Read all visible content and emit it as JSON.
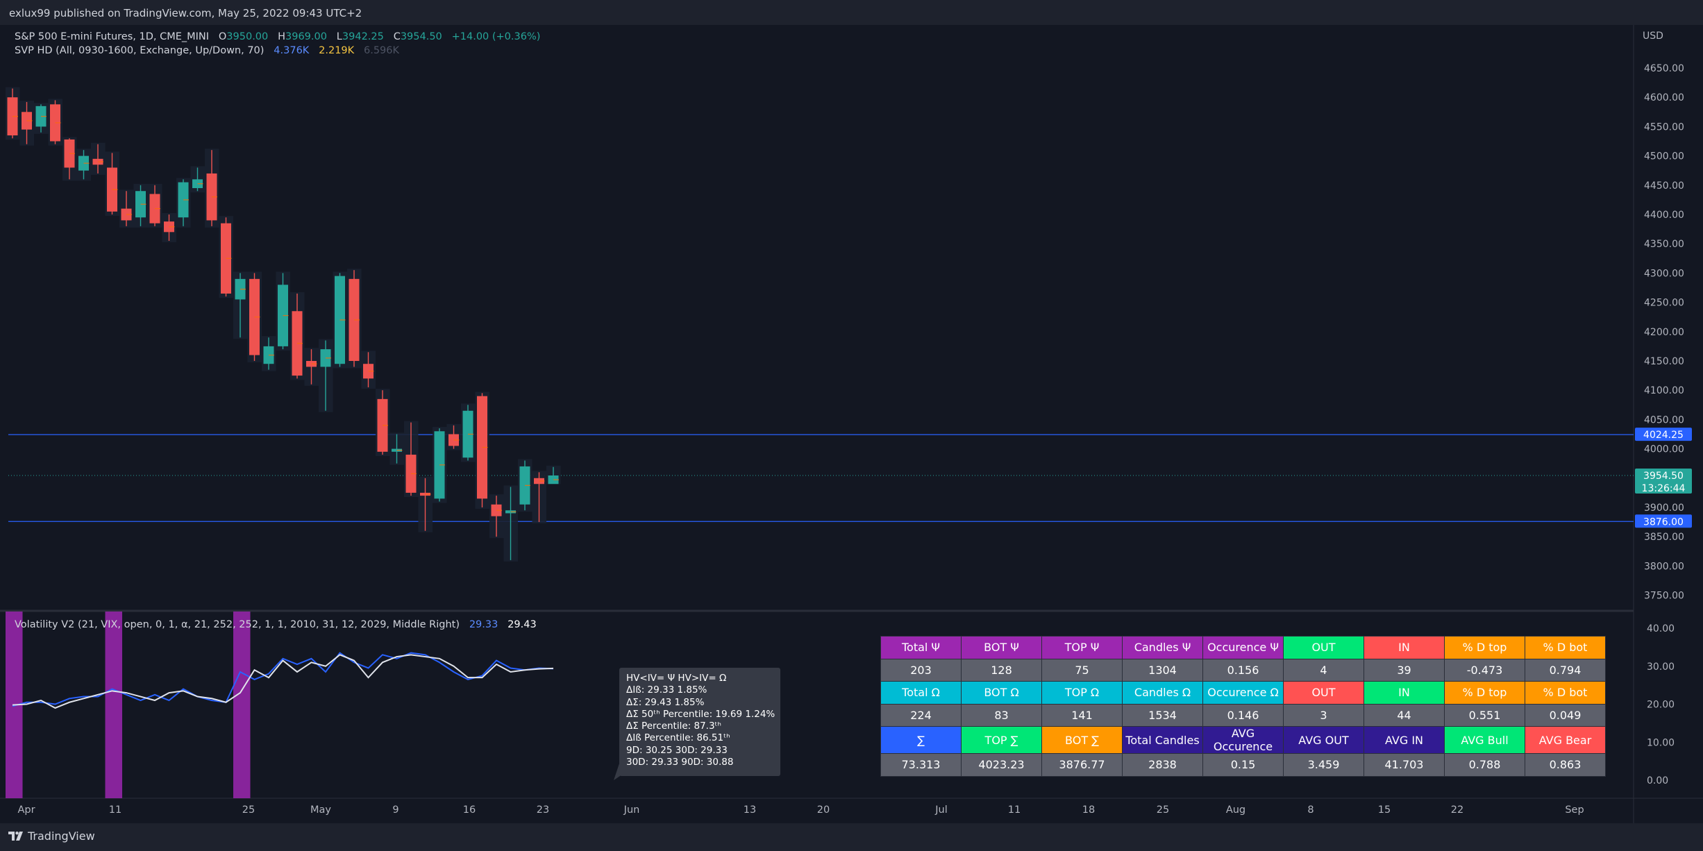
{
  "header": {
    "published": "exlux99 published on TradingView.com, May 25, 2022 09:43 UTC+2"
  },
  "legend": {
    "symbol": "S&P 500 E-mini Futures, 1D, CME_MINI",
    "o_label": "O",
    "o": "3950.00",
    "h_label": "H",
    "h": "3969.00",
    "l_label": "L",
    "l": "3942.25",
    "c_label": "C",
    "c": "3954.50",
    "change": "+14.00 (+0.36%)",
    "svp": "SVP HD (All, 0930-1600, Exchange, Up/Down, 70)",
    "svp_v1": "4.376K",
    "svp_v2": "2.219K",
    "svp_v3": "6.596K",
    "vol_title": "Volatility V2 (21, VIX, open, 0, 1, α, 21, 252, 252, 1, 1, 2010, 31, 12, 2029, Middle Right)",
    "vol_v1": "29.33",
    "vol_v2": "29.43"
  },
  "price_axis": {
    "currency": "USD",
    "labels": [
      "4650.00",
      "4600.00",
      "4550.00",
      "4500.00",
      "4450.00",
      "4400.00",
      "4350.00",
      "4300.00",
      "4250.00",
      "4200.00",
      "4150.00",
      "4100.00",
      "4050.00",
      "4000.00",
      "3950.00",
      "3900.00",
      "3850.00",
      "3800.00",
      "3750.00"
    ],
    "tag_upper": "4024.25",
    "tag_last": "3954.50",
    "tag_countdown": "13:26:44",
    "tag_lower": "3876.00"
  },
  "vol_axis": {
    "labels": [
      "40.00",
      "30.00",
      "20.00",
      "10.00",
      "0.00"
    ]
  },
  "time_axis": {
    "labels": [
      "Apr",
      "11",
      "25",
      "May",
      "9",
      "16",
      "23",
      "Jun",
      "13",
      "20",
      "Jul",
      "11",
      "18",
      "25",
      "Aug",
      "8",
      "15",
      "22",
      "Sep"
    ]
  },
  "stats_box": {
    "lines": [
      "HV<IV= Ψ  HV>IV= Ω",
      "ΔIß: 29.33  1.85%",
      "ΔΣ: 29.43  1.85%",
      "ΔΣ 50ᵗʰ Percentile: 19.69  1.24%",
      "ΔΣ Percentile: 87.3ᵗʰ",
      "ΔIß Percentile: 86.51ᵗʰ",
      "9D: 30.25  30D: 29.33",
      "30D: 29.33  90D: 30.88"
    ]
  },
  "stats_table": {
    "rows": [
      [
        {
          "t": "Total Ψ",
          "bg": "#9c27b0"
        },
        {
          "t": "BOT Ψ",
          "bg": "#9c27b0"
        },
        {
          "t": "TOP Ψ",
          "bg": "#9c27b0"
        },
        {
          "t": "Candles Ψ",
          "bg": "#9c27b0"
        },
        {
          "t": "Occurence Ψ",
          "bg": "#9c27b0"
        },
        {
          "t": "OUT",
          "bg": "#00e676"
        },
        {
          "t": "IN",
          "bg": "#ff5252"
        },
        {
          "t": "% D top",
          "bg": "#ff9800"
        },
        {
          "t": "% D bot",
          "bg": "#ff9800"
        }
      ],
      [
        {
          "t": "203",
          "bg": "#5d606b"
        },
        {
          "t": "128",
          "bg": "#5d606b"
        },
        {
          "t": "75",
          "bg": "#5d606b"
        },
        {
          "t": "1304",
          "bg": "#5d606b"
        },
        {
          "t": "0.156",
          "bg": "#5d606b"
        },
        {
          "t": "4",
          "bg": "#5d606b"
        },
        {
          "t": "39",
          "bg": "#5d606b"
        },
        {
          "t": "-0.473",
          "bg": "#5d606b"
        },
        {
          "t": "0.794",
          "bg": "#5d606b"
        }
      ],
      [
        {
          "t": "Total Ω",
          "bg": "#00bcd4"
        },
        {
          "t": "BOT Ω",
          "bg": "#00bcd4"
        },
        {
          "t": "TOP Ω",
          "bg": "#00bcd4"
        },
        {
          "t": "Candles Ω",
          "bg": "#00bcd4"
        },
        {
          "t": "Occurence Ω",
          "bg": "#00bcd4"
        },
        {
          "t": "OUT",
          "bg": "#ff5252"
        },
        {
          "t": "IN",
          "bg": "#00e676"
        },
        {
          "t": "% D top",
          "bg": "#ff9800"
        },
        {
          "t": "% D bot",
          "bg": "#ff9800"
        }
      ],
      [
        {
          "t": "224",
          "bg": "#5d606b"
        },
        {
          "t": "83",
          "bg": "#5d606b"
        },
        {
          "t": "141",
          "bg": "#5d606b"
        },
        {
          "t": "1534",
          "bg": "#5d606b"
        },
        {
          "t": "0.146",
          "bg": "#5d606b"
        },
        {
          "t": "3",
          "bg": "#5d606b"
        },
        {
          "t": "44",
          "bg": "#5d606b"
        },
        {
          "t": "0.551",
          "bg": "#5d606b"
        },
        {
          "t": "0.049",
          "bg": "#5d606b"
        }
      ],
      [
        {
          "t": "∑",
          "bg": "#2962ff"
        },
        {
          "t": "TOP ∑",
          "bg": "#00e676"
        },
        {
          "t": "BOT ∑",
          "bg": "#ff9800"
        },
        {
          "t": "Total Candles",
          "bg": "#311b92"
        },
        {
          "t": "AVG Occurence",
          "bg": "#311b92"
        },
        {
          "t": "AVG OUT",
          "bg": "#311b92"
        },
        {
          "t": "AVG IN",
          "bg": "#311b92"
        },
        {
          "t": "AVG Bull",
          "bg": "#00e676"
        },
        {
          "t": "AVG Bear",
          "bg": "#ff5252"
        }
      ],
      [
        {
          "t": "73.313",
          "bg": "#5d606b"
        },
        {
          "t": "4023.23",
          "bg": "#5d606b"
        },
        {
          "t": "3876.77",
          "bg": "#5d606b"
        },
        {
          "t": "2838",
          "bg": "#5d606b"
        },
        {
          "t": "0.15",
          "bg": "#5d606b"
        },
        {
          "t": "3.459",
          "bg": "#5d606b"
        },
        {
          "t": "41.703",
          "bg": "#5d606b"
        },
        {
          "t": "0.788",
          "bg": "#5d606b"
        },
        {
          "t": "0.863",
          "bg": "#5d606b"
        }
      ]
    ]
  },
  "footer": {
    "brand": "TradingView"
  },
  "chart_data": [
    {
      "type": "candlestick",
      "title": "S&P 500 E-mini Futures, 1D, CME_MINI",
      "ylabel": "USD",
      "ylim": [
        3720,
        4690
      ],
      "up_color": "#26a69a",
      "down_color": "#ef5350",
      "hlines": [
        {
          "value": 4024.25,
          "color": "#2962ff"
        },
        {
          "value": 3876.0,
          "color": "#2962ff"
        }
      ],
      "last_price": 3954.5,
      "candles": [
        {
          "i": 0,
          "o": 4600,
          "h": 4615,
          "l": 4530,
          "c": 4535
        },
        {
          "i": 1,
          "o": 4575,
          "h": 4592,
          "l": 4520,
          "c": 4545
        },
        {
          "i": 2,
          "o": 4550,
          "h": 4588,
          "l": 4540,
          "c": 4585
        },
        {
          "i": 3,
          "o": 4588,
          "h": 4595,
          "l": 4520,
          "c": 4525
        },
        {
          "i": 4,
          "o": 4528,
          "h": 4530,
          "l": 4460,
          "c": 4480
        },
        {
          "i": 5,
          "o": 4475,
          "h": 4510,
          "l": 4460,
          "c": 4500
        },
        {
          "i": 6,
          "o": 4495,
          "h": 4520,
          "l": 4470,
          "c": 4485
        },
        {
          "i": 7,
          "o": 4480,
          "h": 4505,
          "l": 4400,
          "c": 4405
        },
        {
          "i": 8,
          "o": 4410,
          "h": 4440,
          "l": 4380,
          "c": 4390
        },
        {
          "i": 9,
          "o": 4395,
          "h": 4450,
          "l": 4380,
          "c": 4440
        },
        {
          "i": 10,
          "o": 4435,
          "h": 4450,
          "l": 4380,
          "c": 4385
        },
        {
          "i": 11,
          "o": 4388,
          "h": 4400,
          "l": 4355,
          "c": 4370
        },
        {
          "i": 12,
          "o": 4395,
          "h": 4460,
          "l": 4380,
          "c": 4455
        },
        {
          "i": 13,
          "o": 4445,
          "h": 4480,
          "l": 4440,
          "c": 4460
        },
        {
          "i": 14,
          "o": 4470,
          "h": 4510,
          "l": 4380,
          "c": 4390
        },
        {
          "i": 15,
          "o": 4385,
          "h": 4395,
          "l": 4260,
          "c": 4265
        },
        {
          "i": 16,
          "o": 4255,
          "h": 4300,
          "l": 4190,
          "c": 4290
        },
        {
          "i": 17,
          "o": 4290,
          "h": 4300,
          "l": 4150,
          "c": 4160
        },
        {
          "i": 18,
          "o": 4145,
          "h": 4190,
          "l": 4135,
          "c": 4175
        },
        {
          "i": 19,
          "o": 4175,
          "h": 4300,
          "l": 4170,
          "c": 4280
        },
        {
          "i": 20,
          "o": 4235,
          "h": 4265,
          "l": 4120,
          "c": 4125
        },
        {
          "i": 21,
          "o": 4150,
          "h": 4170,
          "l": 4110,
          "c": 4140
        },
        {
          "i": 22,
          "o": 4140,
          "h": 4185,
          "l": 4065,
          "c": 4170
        },
        {
          "i": 23,
          "o": 4145,
          "h": 4300,
          "l": 4140,
          "c": 4295
        },
        {
          "i": 24,
          "o": 4290,
          "h": 4305,
          "l": 4140,
          "c": 4150
        },
        {
          "i": 25,
          "o": 4145,
          "h": 4165,
          "l": 4105,
          "c": 4120
        },
        {
          "i": 26,
          "o": 4085,
          "h": 4100,
          "l": 3990,
          "c": 3995
        },
        {
          "i": 27,
          "o": 3995,
          "h": 4025,
          "l": 3975,
          "c": 4000
        },
        {
          "i": 28,
          "o": 3990,
          "h": 4045,
          "l": 3920,
          "c": 3925
        },
        {
          "i": 29,
          "o": 3925,
          "h": 3950,
          "l": 3860,
          "c": 3920
        },
        {
          "i": 30,
          "o": 3915,
          "h": 4035,
          "l": 3910,
          "c": 4030
        },
        {
          "i": 31,
          "o": 4025,
          "h": 4040,
          "l": 4000,
          "c": 4005
        },
        {
          "i": 32,
          "o": 3985,
          "h": 4075,
          "l": 3980,
          "c": 4065
        },
        {
          "i": 33,
          "o": 4090,
          "h": 4095,
          "l": 3900,
          "c": 3915
        },
        {
          "i": 34,
          "o": 3905,
          "h": 3920,
          "l": 3850,
          "c": 3885
        },
        {
          "i": 35,
          "o": 3890,
          "h": 3935,
          "l": 3810,
          "c": 3895
        },
        {
          "i": 36,
          "o": 3905,
          "h": 3980,
          "l": 3895,
          "c": 3970
        },
        {
          "i": 37,
          "o": 3950,
          "h": 3960,
          "l": 3875,
          "c": 3940
        },
        {
          "i": 38,
          "o": 3940,
          "h": 3969,
          "l": 3942,
          "c": 3954.5
        }
      ]
    },
    {
      "type": "line",
      "title": "Volatility V2",
      "ylim": [
        0,
        45
      ],
      "series": [
        {
          "color": "#2962ff",
          "values": [
            19.5,
            20.5,
            20.5,
            20.0,
            21.5,
            22.0,
            22.0,
            24.0,
            22.5,
            21.0,
            22.5,
            21.0,
            24.0,
            22.0,
            21.0,
            20.5,
            28.5,
            26.5,
            28.0,
            32.0,
            30.5,
            32.0,
            28.5,
            33.5,
            31.0,
            29.5,
            33.0,
            32.0,
            33.5,
            33.0,
            31.0,
            28.5,
            26.5,
            27.5,
            31.5,
            29.5,
            29.0,
            29.5,
            29.33
          ]
        },
        {
          "color": "#e0e3eb",
          "values": [
            19.8,
            20.0,
            21.0,
            19.0,
            20.5,
            21.5,
            22.5,
            23.5,
            23.0,
            22.0,
            21.0,
            23.0,
            23.5,
            22.0,
            21.5,
            20.5,
            23.0,
            29.0,
            27.0,
            31.5,
            28.5,
            31.0,
            30.0,
            33.0,
            31.5,
            27.0,
            31.0,
            32.5,
            33.0,
            32.5,
            32.0,
            30.0,
            27.0,
            27.0,
            30.5,
            28.5,
            29.0,
            29.3,
            29.43
          ]
        }
      ],
      "highlight_bands": [
        [
          0,
          1
        ],
        [
          7,
          8
        ],
        [
          16,
          17
        ]
      ],
      "band_color": "#9c27b0"
    }
  ]
}
